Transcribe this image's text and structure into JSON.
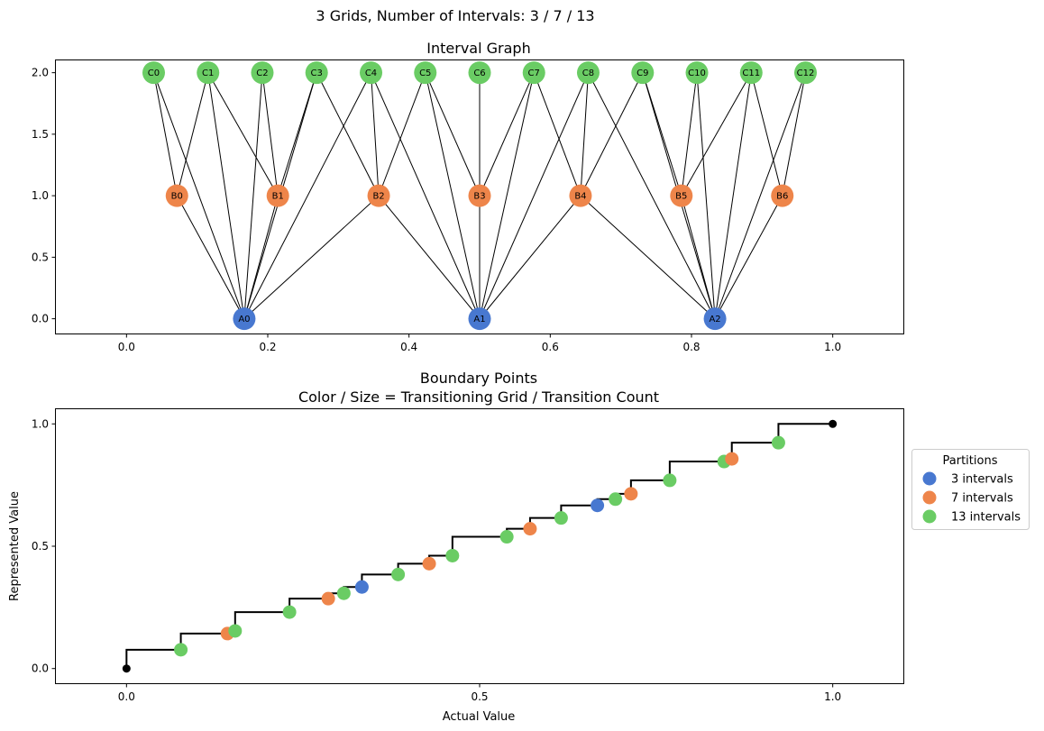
{
  "suptitle": "3 Grids, Number of Intervals: 3 / 7 / 13",
  "colors": {
    "A": "#4878d0",
    "B": "#ee854a",
    "C": "#6acc64",
    "endpoint": "#000000"
  },
  "chart_data": [
    {
      "type": "network",
      "title": "Interval Graph",
      "xlim": [
        -0.1,
        1.1
      ],
      "ylim": [
        -0.12,
        2.1
      ],
      "xticks": [
        0.0,
        0.2,
        0.4,
        0.6,
        0.8,
        1.0
      ],
      "xtick_labels": [
        "0.0",
        "0.2",
        "0.4",
        "0.6",
        "0.8",
        "1.0"
      ],
      "yticks": [
        0.0,
        0.5,
        1.0,
        1.5,
        2.0
      ],
      "ytick_labels": [
        "0.0",
        "0.5",
        "1.0",
        "1.5",
        "2.0"
      ],
      "nodes": [
        {
          "id": "A0",
          "group": "A",
          "x": 0.1667,
          "y": 0
        },
        {
          "id": "A1",
          "group": "A",
          "x": 0.5,
          "y": 0
        },
        {
          "id": "A2",
          "group": "A",
          "x": 0.8333,
          "y": 0
        },
        {
          "id": "B0",
          "group": "B",
          "x": 0.0714,
          "y": 1
        },
        {
          "id": "B1",
          "group": "B",
          "x": 0.2143,
          "y": 1
        },
        {
          "id": "B2",
          "group": "B",
          "x": 0.3571,
          "y": 1
        },
        {
          "id": "B3",
          "group": "B",
          "x": 0.5,
          "y": 1
        },
        {
          "id": "B4",
          "group": "B",
          "x": 0.6429,
          "y": 1
        },
        {
          "id": "B5",
          "group": "B",
          "x": 0.7857,
          "y": 1
        },
        {
          "id": "B6",
          "group": "B",
          "x": 0.9286,
          "y": 1
        },
        {
          "id": "C0",
          "group": "C",
          "x": 0.0385,
          "y": 2
        },
        {
          "id": "C1",
          "group": "C",
          "x": 0.1154,
          "y": 2
        },
        {
          "id": "C2",
          "group": "C",
          "x": 0.1923,
          "y": 2
        },
        {
          "id": "C3",
          "group": "C",
          "x": 0.2692,
          "y": 2
        },
        {
          "id": "C4",
          "group": "C",
          "x": 0.3462,
          "y": 2
        },
        {
          "id": "C5",
          "group": "C",
          "x": 0.4231,
          "y": 2
        },
        {
          "id": "C6",
          "group": "C",
          "x": 0.5,
          "y": 2
        },
        {
          "id": "C7",
          "group": "C",
          "x": 0.5769,
          "y": 2
        },
        {
          "id": "C8",
          "group": "C",
          "x": 0.6538,
          "y": 2
        },
        {
          "id": "C9",
          "group": "C",
          "x": 0.7308,
          "y": 2
        },
        {
          "id": "C10",
          "group": "C",
          "x": 0.8077,
          "y": 2
        },
        {
          "id": "C11",
          "group": "C",
          "x": 0.8846,
          "y": 2
        },
        {
          "id": "C12",
          "group": "C",
          "x": 0.9615,
          "y": 2
        }
      ],
      "edges": [
        [
          "A0",
          "B0"
        ],
        [
          "A0",
          "B1"
        ],
        [
          "A0",
          "B2"
        ],
        [
          "A1",
          "B2"
        ],
        [
          "A1",
          "B3"
        ],
        [
          "A1",
          "B4"
        ],
        [
          "A2",
          "B4"
        ],
        [
          "A2",
          "B5"
        ],
        [
          "A2",
          "B6"
        ],
        [
          "A0",
          "C0"
        ],
        [
          "A0",
          "C1"
        ],
        [
          "A0",
          "C2"
        ],
        [
          "A0",
          "C3"
        ],
        [
          "A0",
          "C4"
        ],
        [
          "A1",
          "C4"
        ],
        [
          "A1",
          "C5"
        ],
        [
          "A1",
          "C6"
        ],
        [
          "A1",
          "C7"
        ],
        [
          "A1",
          "C8"
        ],
        [
          "A2",
          "C8"
        ],
        [
          "A2",
          "C9"
        ],
        [
          "A2",
          "C10"
        ],
        [
          "A2",
          "C11"
        ],
        [
          "A2",
          "C12"
        ],
        [
          "B0",
          "C0"
        ],
        [
          "B0",
          "C1"
        ],
        [
          "B1",
          "C1"
        ],
        [
          "B1",
          "C2"
        ],
        [
          "B1",
          "C3"
        ],
        [
          "B2",
          "C3"
        ],
        [
          "B2",
          "C4"
        ],
        [
          "B2",
          "C5"
        ],
        [
          "B3",
          "C5"
        ],
        [
          "B3",
          "C6"
        ],
        [
          "B3",
          "C7"
        ],
        [
          "B4",
          "C7"
        ],
        [
          "B4",
          "C8"
        ],
        [
          "B4",
          "C9"
        ],
        [
          "B5",
          "C9"
        ],
        [
          "B5",
          "C10"
        ],
        [
          "B5",
          "C11"
        ],
        [
          "B6",
          "C11"
        ],
        [
          "B6",
          "C12"
        ]
      ]
    },
    {
      "type": "scatter",
      "title_line1": "Boundary Points",
      "title_line2": "Color / Size = Transitioning Grid / Transition Count",
      "xlabel": "Actual Value",
      "ylabel": "Represented Value",
      "xlim": [
        -0.1,
        1.1
      ],
      "ylim": [
        -0.06,
        1.06
      ],
      "xticks": [
        0.0,
        0.5,
        1.0
      ],
      "xtick_labels": [
        "0.0",
        "0.5",
        "1.0"
      ],
      "yticks": [
        0.0,
        0.5,
        1.0
      ],
      "ytick_labels": [
        "0.0",
        "0.5",
        "1.0"
      ],
      "legend": {
        "title": "Partitions",
        "placement": "right, outside",
        "entries": [
          {
            "label": "3 intervals",
            "group": "A"
          },
          {
            "label": "7 intervals",
            "group": "B"
          },
          {
            "label": "13 intervals",
            "group": "C"
          }
        ]
      },
      "step_points": [
        [
          0.0,
          0.0
        ],
        [
          0.0769,
          0.0769
        ],
        [
          0.1429,
          0.1429
        ],
        [
          0.1538,
          0.1538
        ],
        [
          0.2308,
          0.2308
        ],
        [
          0.2857,
          0.2857
        ],
        [
          0.3077,
          0.3077
        ],
        [
          0.3333,
          0.3333
        ],
        [
          0.3846,
          0.3846
        ],
        [
          0.4286,
          0.4286
        ],
        [
          0.4615,
          0.4615
        ],
        [
          0.5385,
          0.5385
        ],
        [
          0.5714,
          0.5714
        ],
        [
          0.6154,
          0.6154
        ],
        [
          0.6667,
          0.6667
        ],
        [
          0.6923,
          0.6923
        ],
        [
          0.7143,
          0.7143
        ],
        [
          0.7692,
          0.7692
        ],
        [
          0.8462,
          0.8462
        ],
        [
          0.8571,
          0.8571
        ],
        [
          0.9231,
          0.9231
        ],
        [
          1.0,
          1.0
        ]
      ],
      "points": [
        {
          "x": 0.0,
          "y": 0.0,
          "group": "endpoint"
        },
        {
          "x": 0.0769,
          "y": 0.0769,
          "group": "C"
        },
        {
          "x": 0.1429,
          "y": 0.1429,
          "group": "B"
        },
        {
          "x": 0.1538,
          "y": 0.1538,
          "group": "C"
        },
        {
          "x": 0.2308,
          "y": 0.2308,
          "group": "C"
        },
        {
          "x": 0.2857,
          "y": 0.2857,
          "group": "B"
        },
        {
          "x": 0.3077,
          "y": 0.3077,
          "group": "C"
        },
        {
          "x": 0.3333,
          "y": 0.3333,
          "group": "A"
        },
        {
          "x": 0.3846,
          "y": 0.3846,
          "group": "C"
        },
        {
          "x": 0.4286,
          "y": 0.4286,
          "group": "B"
        },
        {
          "x": 0.4615,
          "y": 0.4615,
          "group": "C"
        },
        {
          "x": 0.5385,
          "y": 0.5385,
          "group": "C"
        },
        {
          "x": 0.5714,
          "y": 0.5714,
          "group": "B"
        },
        {
          "x": 0.6154,
          "y": 0.6154,
          "group": "C"
        },
        {
          "x": 0.6667,
          "y": 0.6667,
          "group": "A"
        },
        {
          "x": 0.6923,
          "y": 0.6923,
          "group": "C"
        },
        {
          "x": 0.7143,
          "y": 0.7143,
          "group": "B"
        },
        {
          "x": 0.7692,
          "y": 0.7692,
          "group": "C"
        },
        {
          "x": 0.8462,
          "y": 0.8462,
          "group": "C"
        },
        {
          "x": 0.8571,
          "y": 0.8571,
          "group": "B"
        },
        {
          "x": 0.9231,
          "y": 0.9231,
          "group": "C"
        },
        {
          "x": 1.0,
          "y": 1.0,
          "group": "endpoint"
        }
      ]
    }
  ]
}
